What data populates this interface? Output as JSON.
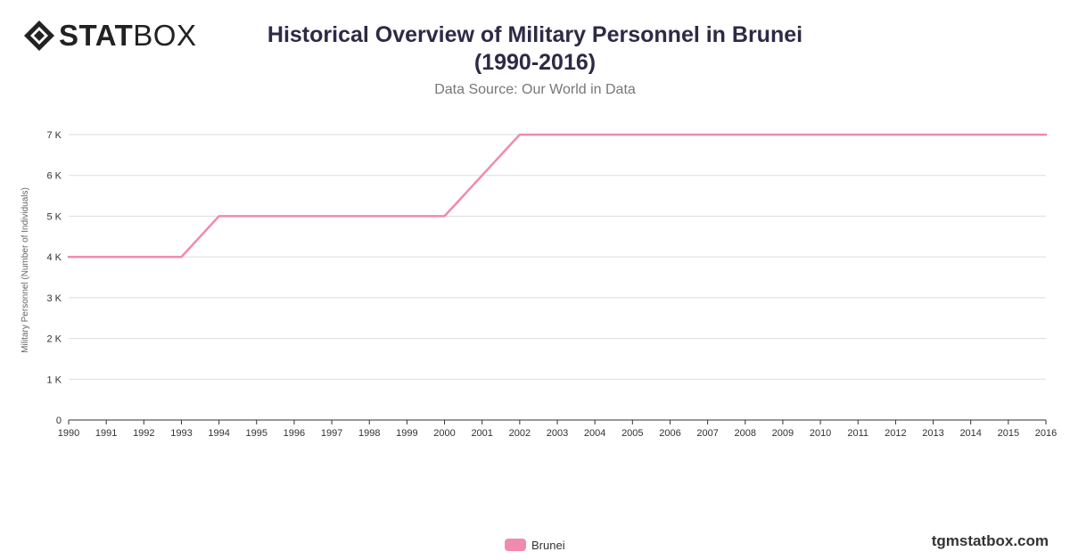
{
  "brand": {
    "logo_bold": "STAT",
    "logo_light": "BOX",
    "site": "tgmstatbox.com"
  },
  "chart_data": {
    "type": "line",
    "title": "Historical Overview of Military Personnel in Brunei (1990-2016)",
    "title_line1": "Historical Overview of Military Personnel in Brunei",
    "title_line2": "(1990-2016)",
    "subtitle": "Data Source: Our World in Data",
    "xlabel": "",
    "ylabel": "Military Personnel (Number of Individuals)",
    "x": [
      1990,
      1991,
      1992,
      1993,
      1994,
      1995,
      1996,
      1997,
      1998,
      1999,
      2000,
      2001,
      2002,
      2003,
      2004,
      2005,
      2006,
      2007,
      2008,
      2009,
      2010,
      2011,
      2012,
      2013,
      2014,
      2015,
      2016
    ],
    "series": [
      {
        "name": "Brunei",
        "color": "#f08aaf",
        "values": [
          4000,
          4000,
          4000,
          4000,
          5000,
          5000,
          5000,
          5000,
          5000,
          5000,
          5000,
          6000,
          7000,
          7000,
          7000,
          7000,
          7000,
          7000,
          7000,
          7000,
          7000,
          7000,
          7000,
          7000,
          7000,
          7000,
          7000
        ]
      }
    ],
    "yticks": [
      0,
      1000,
      2000,
      3000,
      4000,
      5000,
      6000,
      7000
    ],
    "ytick_labels": [
      "0",
      "1 K",
      "2 K",
      "3 K",
      "4 K",
      "5 K",
      "6 K",
      "7 K"
    ],
    "ylim": [
      0,
      7000
    ],
    "grid": true,
    "legend_position": "bottom"
  }
}
